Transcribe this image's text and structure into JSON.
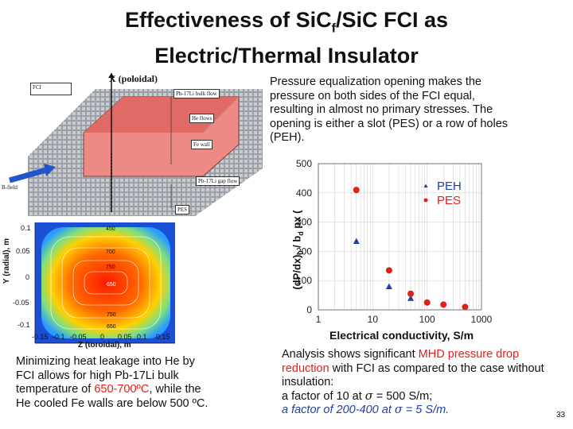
{
  "slide": {
    "title_line1_pre": "Effectiveness of SiC",
    "title_sub": "f",
    "title_line1_post": "/SiC FCI as",
    "title_line2": "Electric/Thermal Insulator",
    "slide_number": "33"
  },
  "diagram": {
    "labels": {
      "fci": "FCI",
      "x_poloidal": "X (poloidal)",
      "pb_bulk": "Pb-17Li bulk flow",
      "he_flows": "He flows",
      "fe_wall": "Fe wall",
      "b_field": "B-field",
      "pb_gap": "Pb-17Li gap flow",
      "pes": "PES"
    }
  },
  "contour": {
    "y_axis_label": "Y (radial), m",
    "x_axis_label": "Z (toroidal), m",
    "y_ticks": [
      "0.1",
      "0.05",
      "0",
      "-0.05",
      "-0.1"
    ],
    "x_ticks": [
      "-0.15",
      "-0.1",
      "-0.05",
      "0",
      "0.05",
      "0.1",
      "0.15"
    ],
    "contour_labels": [
      "450",
      "700",
      "750",
      "650",
      "750",
      "650"
    ]
  },
  "chart_data": {
    "type": "scatter",
    "xscale": "log",
    "xlim": [
      1,
      1000
    ],
    "ylim": [
      0,
      500
    ],
    "x_ticks": [
      "1",
      "10",
      "100",
      "1000"
    ],
    "y_ticks": [
      "0",
      "100",
      "200",
      "300",
      "400",
      "500"
    ],
    "xlabel": "Electrical conductivity, S/m",
    "ylabel_parts": [
      "(dP/dx)",
      "0",
      " / ",
      "b",
      "d",
      " px ("
    ],
    "grid": true,
    "legend_position": "top-right",
    "series": [
      {
        "name": "PEH",
        "marker": "triangle",
        "color": "#1f3fa8",
        "points": [
          [
            5,
            235
          ],
          [
            20,
            80
          ],
          [
            50,
            40
          ]
        ]
      },
      {
        "name": "PES",
        "marker": "circle",
        "color": "#e0201a",
        "points": [
          [
            5,
            410
          ],
          [
            20,
            135
          ],
          [
            50,
            55
          ],
          [
            100,
            25
          ],
          [
            200,
            18
          ],
          [
            500,
            10
          ]
        ]
      }
    ]
  },
  "text": {
    "right_top": "Pressure equalization opening makes the pressure on both sides of the FCI equal, resulting in almost no primary stresses. The opening is either a slot (PES) or a row of holes (PEH).",
    "bottom_left_1": "Minimizing heat leakage into He by FCI allows for high Pb-17Li bulk temperature of ",
    "bottom_left_red": "650-700ºC",
    "bottom_left_2": ", while the He cooled Fe walls are below 500 ºC.",
    "br_line1_pre": "Analysis shows significant ",
    "br_line1_red": "MHD pressure drop reduction",
    "br_line1_post": " with FCI as compared to the case without insulation:",
    "br_line2_pre": "a factor of 10 at ",
    "br_sigma": "σ",
    "br_line2_post": " = 500 S/m;",
    "br_line3_pre": "a factor of 200-400 at ",
    "br_line3_post": " = 5 S/m."
  },
  "colors": {
    "accent_red": "#e0201a",
    "accent_blue": "#1f3fa8"
  }
}
